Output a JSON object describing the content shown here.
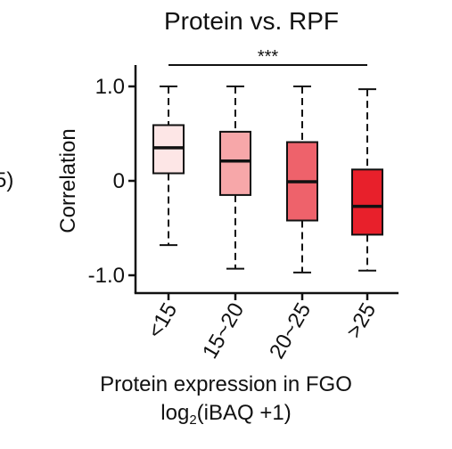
{
  "chart_data": {
    "type": "box",
    "title": "Protein vs. RPF",
    "ylabel": "Correlation",
    "xlabel": "Protein expression in FGO",
    "xlabel_line2": {
      "prefix": "log",
      "subscript": "2",
      "suffix": "(iBAQ +1)"
    },
    "ylim": [
      -1.2,
      1.2
    ],
    "yticks": [
      {
        "value": 1.0,
        "label": "1.0"
      },
      {
        "value": 0,
        "label": "0"
      },
      {
        "value": -1.0,
        "label": "-1.0"
      }
    ],
    "significance": {
      "label": "***",
      "from": 0,
      "to": 3
    },
    "edge_text": "5)",
    "categories": [
      "<15",
      "15~20",
      "20~25",
      ">25"
    ],
    "boxes": [
      {
        "category": "<15",
        "whisker_low": -0.68,
        "q1": 0.08,
        "median": 0.35,
        "q3": 0.59,
        "whisker_high": 1.0,
        "color": "#fde6e6"
      },
      {
        "category": "15~20",
        "whisker_low": -0.93,
        "q1": -0.15,
        "median": 0.21,
        "q3": 0.52,
        "whisker_high": 1.0,
        "color": "#f7a7a9"
      },
      {
        "category": "20~25",
        "whisker_low": -0.97,
        "q1": -0.42,
        "median": -0.01,
        "q3": 0.41,
        "whisker_high": 1.0,
        "color": "#ee626b"
      },
      {
        "category": ">25",
        "whisker_low": -0.95,
        "q1": -0.57,
        "median": -0.27,
        "q3": 0.12,
        "whisker_high": 0.97,
        "color": "#e8202b"
      }
    ]
  }
}
